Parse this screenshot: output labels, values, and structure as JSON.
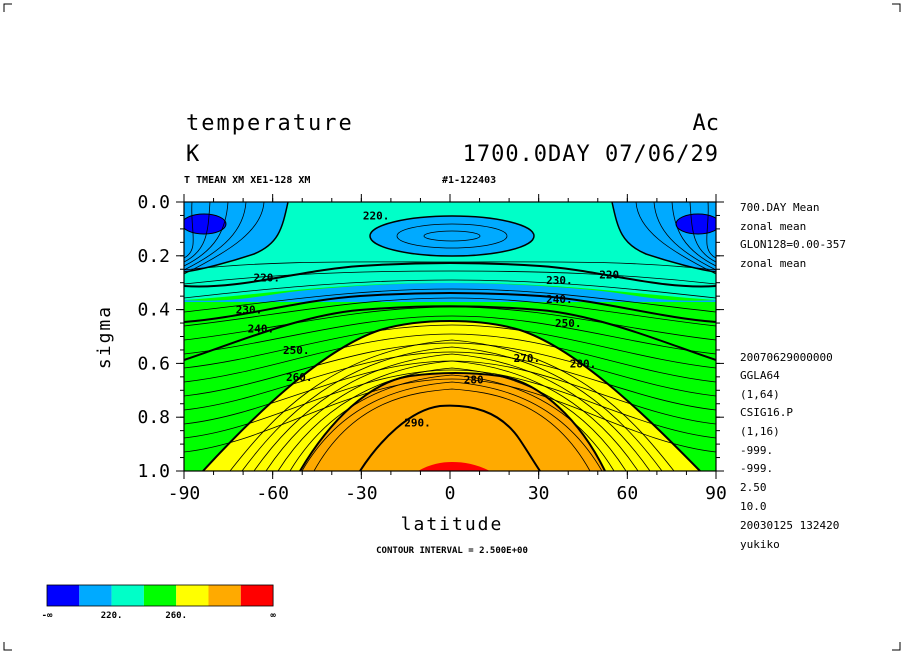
{
  "header": {
    "title_left": "temperature",
    "title_right": "Ac",
    "units": "K",
    "time_label": "1700.0DAY 07/06/29",
    "run_label": "T TMEAN XM XE1-128 XM",
    "run_id": "#1-122403"
  },
  "side_info": [
    "700.DAY Mean",
    "zonal mean",
    "GLON128=0.00-357",
    "zonal mean",
    "20070629000000",
    "GGLA64",
    "(1,64)",
    "CSIG16.P",
    "(1,16)",
    "-999.",
    "-999.",
    "2.50",
    "10.0",
    "20030125 132420",
    "yukiko"
  ],
  "footer": {
    "contour_interval": "CONTOUR INTERVAL = 2.500E+00"
  },
  "colorbar": {
    "colors": [
      "#0000ff",
      "#00aaff",
      "#00ffc8",
      "#00ff00",
      "#ffff00",
      "#ffaa00",
      "#ff0000"
    ],
    "labels": [
      "-∞",
      "220.",
      "260.",
      "∞"
    ]
  },
  "chart_data": {
    "type": "heatmap",
    "title": "temperature",
    "xlabel": "latitude",
    "ylabel": "sigma",
    "xlim": [
      -90,
      90
    ],
    "ylim": [
      1.0,
      0.0
    ],
    "x_ticks": [
      "-90",
      "-60",
      "-30",
      "0",
      "30",
      "60",
      "90"
    ],
    "y_ticks": [
      "0.0",
      "0.2",
      "0.4",
      "0.6",
      "0.8",
      "1.0"
    ],
    "contour_interval": 2.5,
    "color_levels": [
      210,
      220,
      240,
      260,
      280,
      300
    ],
    "contour_labels": [
      {
        "text": "220.",
        "lat": -25,
        "sigma": 0.05
      },
      {
        "text": "220.",
        "lat": -62,
        "sigma": 0.28
      },
      {
        "text": "230.",
        "lat": -68,
        "sigma": 0.4
      },
      {
        "text": "240.",
        "lat": -64,
        "sigma": 0.47
      },
      {
        "text": "250.",
        "lat": -52,
        "sigma": 0.55
      },
      {
        "text": "260.",
        "lat": -51,
        "sigma": 0.65
      },
      {
        "text": "230.",
        "lat": 37,
        "sigma": 0.29
      },
      {
        "text": "220.",
        "lat": 55,
        "sigma": 0.27
      },
      {
        "text": "240.",
        "lat": 37,
        "sigma": 0.36
      },
      {
        "text": "250.",
        "lat": 40,
        "sigma": 0.45
      },
      {
        "text": "270.",
        "lat": 26,
        "sigma": 0.58
      },
      {
        "text": "280.",
        "lat": 45,
        "sigma": 0.6
      },
      {
        "text": "280",
        "lat": 8,
        "sigma": 0.66
      },
      {
        "text": "290.",
        "lat": -11,
        "sigma": 0.82
      }
    ]
  }
}
